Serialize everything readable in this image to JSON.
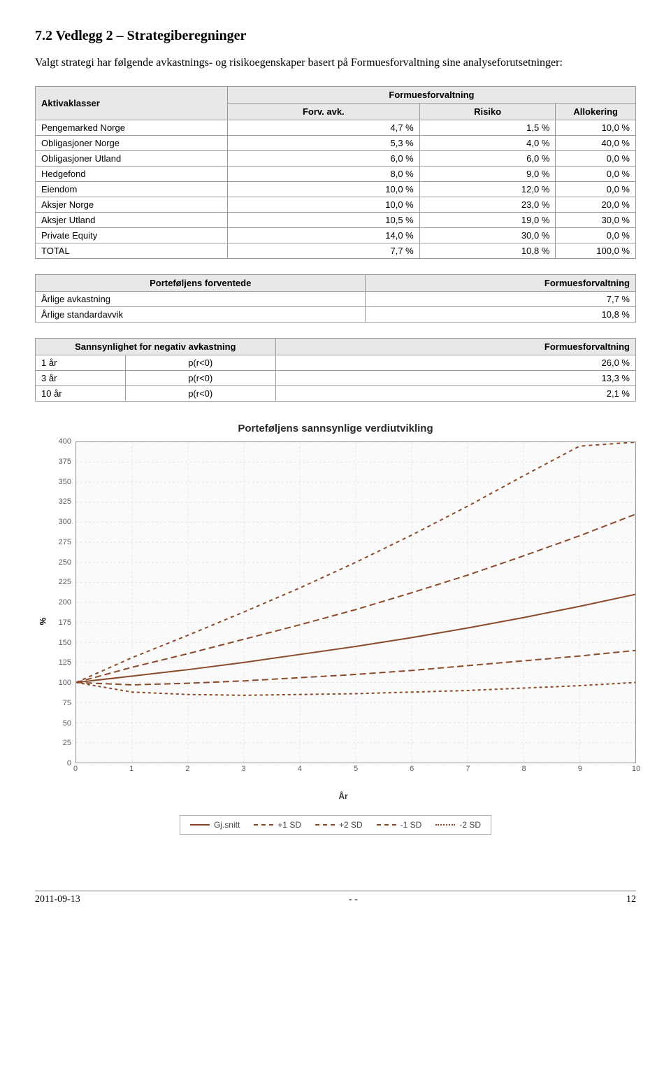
{
  "heading": "7.2   Vedlegg 2 – Strategiberegninger",
  "intro": "Valgt strategi har følgende avkastnings- og risikoegenskaper basert på Formuesforvaltning sine analyseforutsetninger:",
  "table1": {
    "header_main": "Aktivaklasser",
    "header_group": "Formuesforvaltning",
    "sub_headers": [
      "Forv. avk.",
      "Risiko",
      "Allokering"
    ],
    "rows": [
      [
        "Pengemarked Norge",
        "4,7 %",
        "1,5 %",
        "10,0 %"
      ],
      [
        "Obligasjoner Norge",
        "5,3 %",
        "4,0 %",
        "40,0 %"
      ],
      [
        "Obligasjoner Utland",
        "6,0 %",
        "6,0 %",
        "0,0 %"
      ],
      [
        "Hedgefond",
        "8,0 %",
        "9,0 %",
        "0,0 %"
      ],
      [
        "Eiendom",
        "10,0 %",
        "12,0 %",
        "0,0 %"
      ],
      [
        "Aksjer Norge",
        "10,0 %",
        "23,0 %",
        "20,0 %"
      ],
      [
        "Aksjer Utland",
        "10,5 %",
        "19,0 %",
        "30,0 %"
      ],
      [
        "Private Equity",
        "14,0 %",
        "30,0 %",
        "0,0 %"
      ],
      [
        "TOTAL",
        "7,7 %",
        "10,8 %",
        "100,0 %"
      ]
    ]
  },
  "table2": {
    "header_left": "Porteføljens forventede",
    "header_right": "Formuesforvaltning",
    "rows": [
      [
        "Årlige avkastning",
        "7,7 %"
      ],
      [
        "Årlige standardavvik",
        "10,8 %"
      ]
    ]
  },
  "table3": {
    "header_left": "Sannsynlighet for negativ avkastning",
    "header_right": "Formuesforvaltning",
    "rows": [
      [
        "1 år",
        "p(r<0)",
        "26,0 %"
      ],
      [
        "3 år",
        "p(r<0)",
        "13,3 %"
      ],
      [
        "10 år",
        "p(r<0)",
        "2,1 %"
      ]
    ]
  },
  "chart": {
    "title": "Porteføljens sannsynlige verdiutvikling",
    "x_label": "År",
    "y_label": "%",
    "x_ticks": [
      0,
      1,
      2,
      3,
      4,
      5,
      6,
      7,
      8,
      9,
      10
    ],
    "y_ticks": [
      0,
      25,
      50,
      75,
      100,
      125,
      150,
      175,
      200,
      225,
      250,
      275,
      300,
      325,
      350,
      375,
      400
    ],
    "y_min": 0,
    "y_max": 400,
    "series": [
      {
        "name": "Gj.snitt",
        "dash": "solid",
        "color": "#8b4a2a",
        "points": [
          [
            0,
            100
          ],
          [
            1,
            108
          ],
          [
            2,
            116
          ],
          [
            3,
            125
          ],
          [
            4,
            135
          ],
          [
            5,
            145
          ],
          [
            6,
            156
          ],
          [
            7,
            168
          ],
          [
            8,
            181
          ],
          [
            9,
            195
          ],
          [
            10,
            210
          ]
        ]
      },
      {
        "name": "+1 SD",
        "dash": "9,5",
        "color": "#8b4a2a",
        "points": [
          [
            0,
            100
          ],
          [
            1,
            119
          ],
          [
            2,
            136
          ],
          [
            3,
            154
          ],
          [
            4,
            172
          ],
          [
            5,
            191
          ],
          [
            6,
            212
          ],
          [
            7,
            234
          ],
          [
            8,
            258
          ],
          [
            9,
            283
          ],
          [
            10,
            310
          ]
        ]
      },
      {
        "name": "+2 SD",
        "dash": "5,5",
        "color": "#8b4a2a",
        "points": [
          [
            0,
            100
          ],
          [
            1,
            131
          ],
          [
            2,
            159
          ],
          [
            3,
            188
          ],
          [
            4,
            218
          ],
          [
            5,
            250
          ],
          [
            6,
            284
          ],
          [
            7,
            320
          ],
          [
            8,
            358
          ],
          [
            9,
            395
          ],
          [
            10,
            400
          ]
        ]
      },
      {
        "name": "-1 SD",
        "dash": "9,5",
        "color": "#8b4a2a",
        "points": [
          [
            0,
            100
          ],
          [
            1,
            97
          ],
          [
            2,
            99
          ],
          [
            3,
            102
          ],
          [
            4,
            106
          ],
          [
            5,
            110
          ],
          [
            6,
            115
          ],
          [
            7,
            121
          ],
          [
            8,
            127
          ],
          [
            9,
            133
          ],
          [
            10,
            140
          ]
        ]
      },
      {
        "name": "-2 SD",
        "dash": "4,4",
        "color": "#8b4a2a",
        "points": [
          [
            0,
            100
          ],
          [
            1,
            88
          ],
          [
            2,
            85
          ],
          [
            3,
            84
          ],
          [
            4,
            85
          ],
          [
            5,
            86
          ],
          [
            6,
            88
          ],
          [
            7,
            90
          ],
          [
            8,
            93
          ],
          [
            9,
            96
          ],
          [
            10,
            100
          ]
        ]
      }
    ],
    "legend": [
      {
        "label": "Gj.snitt",
        "style": "solid"
      },
      {
        "label": "+1 SD",
        "style": "long"
      },
      {
        "label": "+2 SD",
        "style": "med"
      },
      {
        "label": "-1 SD",
        "style": "long"
      },
      {
        "label": "-2 SD",
        "style": "short"
      }
    ]
  },
  "footer": {
    "date": "2011-09-13",
    "sep": "- -",
    "page": "12"
  }
}
